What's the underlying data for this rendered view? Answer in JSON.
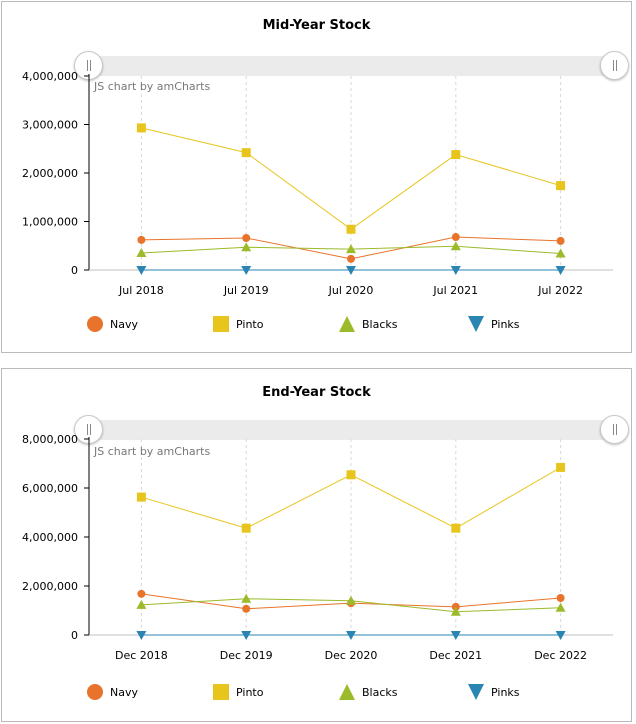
{
  "credit_text": "JS chart by amCharts",
  "series_legend": [
    {
      "name": "Navy",
      "color": "#e8742b",
      "marker": "circle"
    },
    {
      "name": "Pinto",
      "color": "#e8c51d",
      "marker": "square"
    },
    {
      "name": "Blacks",
      "color": "#9bbb2a",
      "marker": "triangle-up"
    },
    {
      "name": "Pinks",
      "color": "#2a85b2",
      "marker": "triangle-down"
    }
  ],
  "chart_data": [
    {
      "type": "line",
      "title": "Mid-Year Stock",
      "categories": [
        "Jul 2018",
        "Jul 2019",
        "Jul 2020",
        "Jul 2021",
        "Jul 2022"
      ],
      "ylim": [
        0,
        4000000
      ],
      "yticks": [
        "0",
        "1,000,000",
        "2,000,000",
        "3,000,000",
        "4,000,000"
      ],
      "grid": "vertical dashed",
      "legend_position": "bottom",
      "series": [
        {
          "name": "Navy",
          "values": [
            620000,
            660000,
            230000,
            680000,
            600000
          ]
        },
        {
          "name": "Pinto",
          "values": [
            2930000,
            2420000,
            840000,
            2380000,
            1740000
          ]
        },
        {
          "name": "Blacks",
          "values": [
            350000,
            470000,
            430000,
            490000,
            340000
          ]
        },
        {
          "name": "Pinks",
          "values": [
            0,
            0,
            0,
            0,
            0
          ]
        }
      ]
    },
    {
      "type": "line",
      "title": "End-Year Stock",
      "categories": [
        "Dec 2018",
        "Dec 2019",
        "Dec 2020",
        "Dec 2021",
        "Dec 2022"
      ],
      "ylim": [
        0,
        8000000
      ],
      "yticks": [
        "0",
        "2,000,000",
        "4,000,000",
        "6,000,000",
        "8,000,000"
      ],
      "grid": "vertical dashed",
      "legend_position": "bottom",
      "series": [
        {
          "name": "Navy",
          "values": [
            1680000,
            1070000,
            1300000,
            1150000,
            1510000
          ]
        },
        {
          "name": "Pinto",
          "values": [
            5630000,
            4360000,
            6540000,
            4360000,
            6840000
          ]
        },
        {
          "name": "Blacks",
          "values": [
            1230000,
            1480000,
            1400000,
            950000,
            1110000
          ]
        },
        {
          "name": "Pinks",
          "values": [
            0,
            0,
            0,
            0,
            0
          ]
        }
      ]
    }
  ]
}
